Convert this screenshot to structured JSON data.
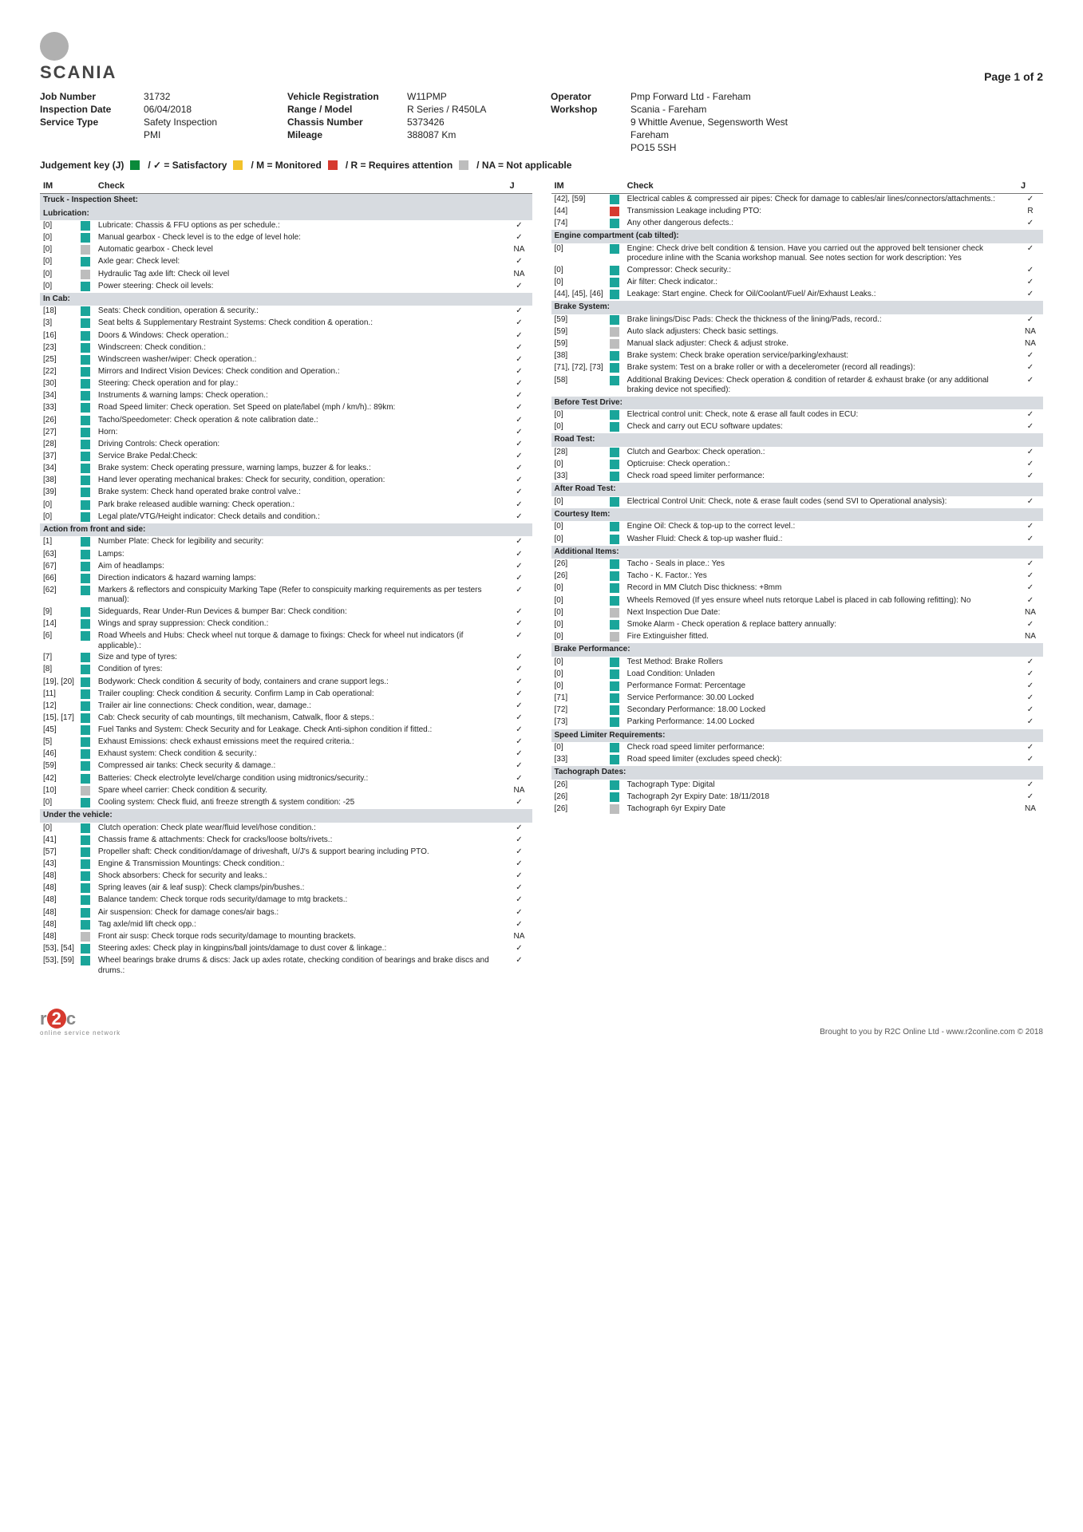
{
  "page_label": "Page 1 of 2",
  "brand": "SCANIA",
  "meta": {
    "job_number_l": "Job Number",
    "job_number": "31732",
    "insp_date_l": "Inspection Date",
    "insp_date": "06/04/2018",
    "service_type_l": "Service Type",
    "service_type": "Safety Inspection",
    "service_sub": "PMI",
    "veh_reg_l": "Vehicle Registration",
    "veh_reg": "W11PMP",
    "range_l": "Range / Model",
    "range": "R Series / R450LA",
    "chassis_l": "Chassis Number",
    "chassis": "5373426",
    "mileage_l": "Mileage",
    "mileage": "388087 Km",
    "operator_l": "Operator",
    "operator": "Pmp Forward Ltd - Fareham",
    "workshop_l": "Workshop",
    "workshop": "Scania - Fareham",
    "workshop_addr1": "9 Whittle Avenue, Segensworth West",
    "workshop_addr2": "Fareham",
    "workshop_addr3": "PO15 5SH"
  },
  "judgement": {
    "title": "Judgement key (J)",
    "sat": "/ ✓ = Satisfactory",
    "mon": "/ M = Monitored",
    "req": "/ R = Requires attention",
    "na": "/ NA = Not applicable"
  },
  "hdr": {
    "im": "IM",
    "check": "Check",
    "j": "J"
  },
  "colors": {
    "green": "#0a8a3a",
    "teal": "#1aa59a",
    "yellow": "#f2c22b",
    "red": "#d63a2f",
    "grey": "#bdbdbd"
  },
  "left": [
    {
      "section": "Truck - Inspection Sheet:"
    },
    {
      "section": "Lubrication:"
    },
    {
      "im": "[0]",
      "c": "teal",
      "t": "Lubricate: Chassis & FFU options as per schedule.:",
      "j": "✓"
    },
    {
      "im": "[0]",
      "c": "teal",
      "t": "Manual gearbox - Check level is to the edge of level hole:",
      "j": "✓"
    },
    {
      "im": "[0]",
      "c": "grey",
      "t": "Automatic gearbox - Check level",
      "j": "NA"
    },
    {
      "im": "[0]",
      "c": "teal",
      "t": "Axle gear: Check level:",
      "j": "✓"
    },
    {
      "im": "[0]",
      "c": "grey",
      "t": "Hydraulic Tag axle lift: Check oil level",
      "j": "NA"
    },
    {
      "im": "[0]",
      "c": "teal",
      "t": "Power steering: Check oil levels:",
      "j": "✓"
    },
    {
      "section": "In Cab:"
    },
    {
      "im": "[18]",
      "c": "teal",
      "t": "Seats: Check condition, operation & security.:",
      "j": "✓"
    },
    {
      "im": "[3]",
      "c": "teal",
      "t": "Seat belts & Supplementary Restraint Systems: Check condition & operation.:",
      "j": "✓"
    },
    {
      "im": "[16]",
      "c": "teal",
      "t": "Doors & Windows: Check operation.:",
      "j": "✓"
    },
    {
      "im": "[23]",
      "c": "teal",
      "t": "Windscreen: Check condition.:",
      "j": "✓"
    },
    {
      "im": "[25]",
      "c": "teal",
      "t": "Windscreen washer/wiper: Check operation.:",
      "j": "✓"
    },
    {
      "im": "[22]",
      "c": "teal",
      "t": "Mirrors and Indirect Vision Devices: Check condition and Operation.:",
      "j": "✓"
    },
    {
      "im": "[30]",
      "c": "teal",
      "t": "Steering: Check operation and for play.:",
      "j": "✓"
    },
    {
      "im": "[34]",
      "c": "teal",
      "t": "Instruments & warning lamps: Check operation.:",
      "j": "✓"
    },
    {
      "im": "[33]",
      "c": "teal",
      "t": "Road Speed limiter: Check operation. Set Speed on plate/label (mph / km/h).: 89km:",
      "j": "✓"
    },
    {
      "im": "[26]",
      "c": "teal",
      "t": "Tacho/Speedometer: Check operation & note calibration date.:",
      "j": "✓"
    },
    {
      "im": "[27]",
      "c": "teal",
      "t": "Horn:",
      "j": "✓"
    },
    {
      "im": "[28]",
      "c": "teal",
      "t": "Driving Controls: Check operation:",
      "j": "✓"
    },
    {
      "im": "[37]",
      "c": "teal",
      "t": "Service Brake Pedal:Check:",
      "j": "✓"
    },
    {
      "im": "[34]",
      "c": "teal",
      "t": "Brake system: Check operating pressure, warning lamps, buzzer & for leaks.:",
      "j": "✓"
    },
    {
      "im": "[38]",
      "c": "teal",
      "t": "Hand lever operating mechanical brakes: Check for security, condition, operation:",
      "j": "✓"
    },
    {
      "im": "[39]",
      "c": "teal",
      "t": "Brake system: Check hand operated brake control valve.:",
      "j": "✓"
    },
    {
      "im": "[0]",
      "c": "teal",
      "t": "Park brake released audible warning: Check operation.:",
      "j": "✓"
    },
    {
      "im": "[0]",
      "c": "teal",
      "t": "Legal plate/VTG/Height indicator: Check details and condition.:",
      "j": "✓"
    },
    {
      "section": "Action from front and side:"
    },
    {
      "im": "[1]",
      "c": "teal",
      "t": "Number Plate: Check for legibility and security:",
      "j": "✓"
    },
    {
      "im": "[63]",
      "c": "teal",
      "t": "Lamps:",
      "j": "✓"
    },
    {
      "im": "[67]",
      "c": "teal",
      "t": "Aim of headlamps:",
      "j": "✓"
    },
    {
      "im": "[66]",
      "c": "teal",
      "t": "Direction indicators & hazard warning lamps:",
      "j": "✓"
    },
    {
      "im": "[62]",
      "c": "teal",
      "t": "Markers & reflectors and conspicuity Marking Tape (Refer to conspicuity marking requirements as per testers manual):",
      "j": "✓"
    },
    {
      "im": "[9]",
      "c": "teal",
      "t": "Sideguards, Rear Under-Run Devices & bumper Bar: Check condition:",
      "j": "✓"
    },
    {
      "im": "[14]",
      "c": "teal",
      "t": "Wings and spray suppression: Check condition.:",
      "j": "✓"
    },
    {
      "im": "[6]",
      "c": "teal",
      "t": "Road Wheels and Hubs: Check wheel nut torque & damage to fixings: Check for wheel nut indicators (if applicable).:",
      "j": "✓"
    },
    {
      "im": "[7]",
      "c": "teal",
      "t": "Size and type of tyres:",
      "j": "✓"
    },
    {
      "im": "[8]",
      "c": "teal",
      "t": "Condition of tyres:",
      "j": "✓"
    },
    {
      "im": "[19], [20]",
      "c": "teal",
      "t": "Bodywork: Check condition & security of body, containers and crane support legs.:",
      "j": "✓"
    },
    {
      "im": "[11]",
      "c": "teal",
      "t": "Trailer coupling: Check condition & security. Confirm Lamp in Cab operational:",
      "j": "✓"
    },
    {
      "im": "[12]",
      "c": "teal",
      "t": "Trailer air line connections: Check condition, wear, damage.:",
      "j": "✓"
    },
    {
      "im": "[15], [17]",
      "c": "teal",
      "t": "Cab: Check security of cab mountings, tilt mechanism, Catwalk, floor & steps.:",
      "j": "✓"
    },
    {
      "im": "[45]",
      "c": "teal",
      "t": "Fuel Tanks and System: Check Security and for Leakage. Check Anti-siphon condition if fitted.:",
      "j": "✓"
    },
    {
      "im": "[5]",
      "c": "teal",
      "t": "Exhaust Emissions: check exhaust emissions meet the required criteria.:",
      "j": "✓"
    },
    {
      "im": "[46]",
      "c": "teal",
      "t": "Exhaust system: Check condition & security.:",
      "j": "✓"
    },
    {
      "im": "[59]",
      "c": "teal",
      "t": "Compressed air tanks: Check security & damage.:",
      "j": "✓"
    },
    {
      "im": "[42]",
      "c": "teal",
      "t": "Batteries: Check electrolyte level/charge condition using midtronics/security.:",
      "j": "✓"
    },
    {
      "im": "[10]",
      "c": "grey",
      "t": "Spare wheel carrier: Check condition & security.",
      "j": "NA"
    },
    {
      "im": "[0]",
      "c": "teal",
      "t": "Cooling system: Check fluid, anti freeze strength & system condition: -25",
      "j": "✓"
    },
    {
      "section": "Under the vehicle:"
    },
    {
      "im": "[0]",
      "c": "teal",
      "t": "Clutch operation: Check plate wear/fluid level/hose condition.:",
      "j": "✓"
    },
    {
      "im": "[41]",
      "c": "teal",
      "t": "Chassis frame & attachments: Check for cracks/loose bolts/rivets.:",
      "j": "✓"
    },
    {
      "im": "[57]",
      "c": "teal",
      "t": "Propeller shaft: Check condition/damage of driveshaft, U/J's & support bearing including PTO.",
      "j": "✓"
    },
    {
      "im": "[43]",
      "c": "teal",
      "t": "Engine & Transmission Mountings: Check condition.:",
      "j": "✓"
    },
    {
      "im": "[48]",
      "c": "teal",
      "t": "Shock absorbers: Check for security and leaks.:",
      "j": "✓"
    },
    {
      "im": "[48]",
      "c": "teal",
      "t": "Spring leaves (air & leaf susp): Check clamps/pin/bushes.:",
      "j": "✓"
    },
    {
      "im": "[48]",
      "c": "teal",
      "t": "Balance tandem: Check torque rods security/damage to mtg brackets.:",
      "j": "✓"
    },
    {
      "im": "[48]",
      "c": "teal",
      "t": "Air suspension: Check for damage cones/air bags.:",
      "j": "✓"
    },
    {
      "im": "[48]",
      "c": "teal",
      "t": "Tag axle/mid lift check opp.:",
      "j": "✓"
    },
    {
      "im": "[48]",
      "c": "grey",
      "t": "Front air susp: Check torque rods security/damage to mounting brackets.",
      "j": "NA"
    },
    {
      "im": "[53], [54]",
      "c": "teal",
      "t": "Steering axles: Check play in kingpins/ball joints/damage to dust cover & linkage.:",
      "j": "✓"
    },
    {
      "im": "[53], [59]",
      "c": "teal",
      "t": "Wheel bearings brake drums & discs: Jack up axles rotate, checking condition of bearings and brake discs and drums.:",
      "j": "✓"
    }
  ],
  "right": [
    {
      "im": "[42], [59]",
      "c": "teal",
      "t": "Electrical cables & compressed air pipes: Check for damage to cables/air lines/connectors/attachments.:",
      "j": "✓"
    },
    {
      "im": "[44]",
      "c": "red",
      "t": "Transmission Leakage including PTO:",
      "j": "R"
    },
    {
      "im": "[74]",
      "c": "teal",
      "t": "Any other dangerous defects.:",
      "j": "✓"
    },
    {
      "section": "Engine compartment (cab tilted):"
    },
    {
      "im": "[0]",
      "c": "teal",
      "t": "Engine: Check drive belt condition & tension. Have you carried out the approved belt tensioner check procedure inline with the Scania workshop manual. See notes section for work description: Yes",
      "j": "✓"
    },
    {
      "im": "[0]",
      "c": "teal",
      "t": "Compressor: Check security.:",
      "j": "✓"
    },
    {
      "im": "[0]",
      "c": "teal",
      "t": "Air filter: Check indicator.:",
      "j": "✓"
    },
    {
      "im": "[44], [45], [46]",
      "c": "teal",
      "t": "Leakage: Start engine. Check for Oil/Coolant/Fuel/ Air/Exhaust Leaks.:",
      "j": "✓"
    },
    {
      "section": "Brake System:"
    },
    {
      "im": "[59]",
      "c": "teal",
      "t": "Brake linings/Disc Pads: Check the thickness of the lining/Pads, record.:",
      "j": "✓"
    },
    {
      "im": "[59]",
      "c": "grey",
      "t": "Auto slack adjusters: Check basic settings.",
      "j": "NA"
    },
    {
      "im": "[59]",
      "c": "grey",
      "t": "Manual slack adjuster: Check & adjust stroke.",
      "j": "NA"
    },
    {
      "im": "[38]",
      "c": "teal",
      "t": "Brake system: Check brake operation service/parking/exhaust:",
      "j": "✓"
    },
    {
      "im": "[71], [72], [73]",
      "c": "teal",
      "t": "Brake system: Test on a brake roller or with a decelerometer (record all readings):",
      "j": "✓"
    },
    {
      "im": "[58]",
      "c": "teal",
      "t": "Additional Braking Devices: Check operation & condition of retarder & exhaust brake (or any additional braking device not specified):",
      "j": "✓"
    },
    {
      "section": "Before Test Drive:"
    },
    {
      "im": "[0]",
      "c": "teal",
      "t": "Electrical control unit: Check, note & erase all fault codes in ECU:",
      "j": "✓"
    },
    {
      "im": "[0]",
      "c": "teal",
      "t": "Check and carry out ECU software updates:",
      "j": "✓"
    },
    {
      "section": "Road Test:"
    },
    {
      "im": "[28]",
      "c": "teal",
      "t": "Clutch and Gearbox: Check operation.:",
      "j": "✓"
    },
    {
      "im": "[0]",
      "c": "teal",
      "t": "Opticruise: Check operation.:",
      "j": "✓"
    },
    {
      "im": "[33]",
      "c": "teal",
      "t": "Check road speed limiter performance:",
      "j": "✓"
    },
    {
      "section": "After Road Test:"
    },
    {
      "im": "[0]",
      "c": "teal",
      "t": "Electrical Control Unit: Check, note & erase fault codes (send SVI to Operational analysis):",
      "j": "✓"
    },
    {
      "section": "Courtesy Item:"
    },
    {
      "im": "[0]",
      "c": "teal",
      "t": "Engine Oil: Check & top-up to the correct level.:",
      "j": "✓"
    },
    {
      "im": "[0]",
      "c": "teal",
      "t": "Washer Fluid: Check & top-up washer fluid.:",
      "j": "✓"
    },
    {
      "section": "Additional Items:"
    },
    {
      "im": "[26]",
      "c": "teal",
      "t": "Tacho - Seals in place.: Yes",
      "j": "✓"
    },
    {
      "im": "[26]",
      "c": "teal",
      "t": "Tacho - K. Factor.: Yes",
      "j": "✓"
    },
    {
      "im": "[0]",
      "c": "teal",
      "t": "Record in MM Clutch Disc thickness: +8mm",
      "j": "✓"
    },
    {
      "im": "[0]",
      "c": "teal",
      "t": "Wheels Removed (If yes ensure wheel nuts retorque Label is placed in cab following refitting): No",
      "j": "✓"
    },
    {
      "im": "[0]",
      "c": "grey",
      "t": "Next Inspection Due Date:",
      "j": "NA"
    },
    {
      "im": "[0]",
      "c": "teal",
      "t": "Smoke Alarm - Check operation & replace battery annually:",
      "j": "✓"
    },
    {
      "im": "[0]",
      "c": "grey",
      "t": "Fire Extinguisher fitted.",
      "j": "NA"
    },
    {
      "section": "Brake Performance:"
    },
    {
      "im": "[0]",
      "c": "teal",
      "t": "Test Method: Brake Rollers",
      "j": "✓"
    },
    {
      "im": "[0]",
      "c": "teal",
      "t": "Load Condition: Unladen",
      "j": "✓"
    },
    {
      "im": "[0]",
      "c": "teal",
      "t": "Performance Format: Percentage",
      "j": "✓"
    },
    {
      "im": "[71]",
      "c": "teal",
      "t": "Service Performance: 30.00 Locked",
      "j": "✓"
    },
    {
      "im": "[72]",
      "c": "teal",
      "t": "Secondary Performance: 18.00 Locked",
      "j": "✓"
    },
    {
      "im": "[73]",
      "c": "teal",
      "t": "Parking Performance: 14.00 Locked",
      "j": "✓"
    },
    {
      "section": "Speed Limiter Requirements:"
    },
    {
      "im": "[0]",
      "c": "teal",
      "t": "Check road speed limiter performance:",
      "j": "✓"
    },
    {
      "im": "[33]",
      "c": "teal",
      "t": "Road speed limiter (excludes speed check):",
      "j": "✓"
    },
    {
      "section": "Tachograph Dates:"
    },
    {
      "im": "[26]",
      "c": "teal",
      "t": "Tachograph Type: Digital",
      "j": "✓"
    },
    {
      "im": "[26]",
      "c": "teal",
      "t": "Tachograph 2yr Expiry Date: 18/11/2018",
      "j": "✓"
    },
    {
      "im": "[26]",
      "c": "grey",
      "t": "Tachograph 6yr Expiry Date",
      "j": "NA"
    }
  ],
  "footer": {
    "r2c_sub": "online service network",
    "credit": "Brought to you by R2C Online Ltd - www.r2conline.com © 2018"
  }
}
